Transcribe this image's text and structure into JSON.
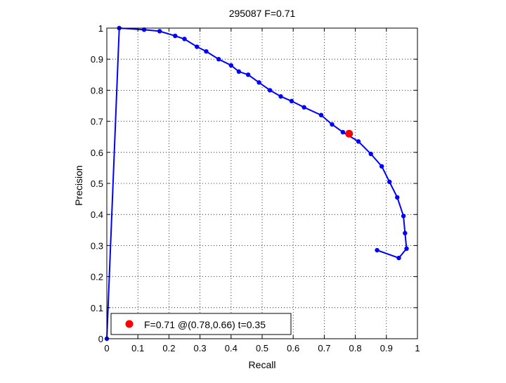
{
  "chart_data": {
    "type": "line",
    "title": "295087 F=0.71",
    "xlabel": "Recall",
    "ylabel": "Precision",
    "xlim": [
      0,
      1
    ],
    "ylim": [
      0,
      1
    ],
    "xticks": [
      "0",
      "0.1",
      "0.2",
      "0.3",
      "0.4",
      "0.5",
      "0.6",
      "0.7",
      "0.8",
      "0.9",
      "1"
    ],
    "yticks": [
      "0",
      "0.1",
      "0.2",
      "0.3",
      "0.4",
      "0.5",
      "0.6",
      "0.7",
      "0.8",
      "0.9",
      "1"
    ],
    "grid": true,
    "legend": {
      "placement": "bottom-left",
      "entries": [
        "F=0.71 @(0.78,0.66) t=0.35"
      ]
    },
    "series": [
      {
        "color": "#0000ff",
        "marker": "circle",
        "points": [
          [
            0.0,
            0.0
          ],
          [
            0.04,
            1.0
          ],
          [
            0.12,
            0.995
          ],
          [
            0.17,
            0.99
          ],
          [
            0.22,
            0.975
          ],
          [
            0.25,
            0.965
          ],
          [
            0.29,
            0.94
          ],
          [
            0.32,
            0.925
          ],
          [
            0.36,
            0.9
          ],
          [
            0.4,
            0.88
          ],
          [
            0.425,
            0.86
          ],
          [
            0.455,
            0.85
          ],
          [
            0.49,
            0.825
          ],
          [
            0.525,
            0.8
          ],
          [
            0.56,
            0.78
          ],
          [
            0.595,
            0.765
          ],
          [
            0.635,
            0.745
          ],
          [
            0.69,
            0.72
          ],
          [
            0.725,
            0.69
          ],
          [
            0.76,
            0.665
          ],
          [
            0.81,
            0.635
          ],
          [
            0.85,
            0.595
          ],
          [
            0.885,
            0.555
          ],
          [
            0.91,
            0.505
          ],
          [
            0.935,
            0.455
          ],
          [
            0.955,
            0.395
          ],
          [
            0.96,
            0.34
          ],
          [
            0.965,
            0.29
          ],
          [
            0.94,
            0.26
          ],
          [
            0.87,
            0.285
          ]
        ]
      }
    ],
    "highlight": {
      "x": 0.78,
      "y": 0.66,
      "color": "#ff0000"
    }
  }
}
